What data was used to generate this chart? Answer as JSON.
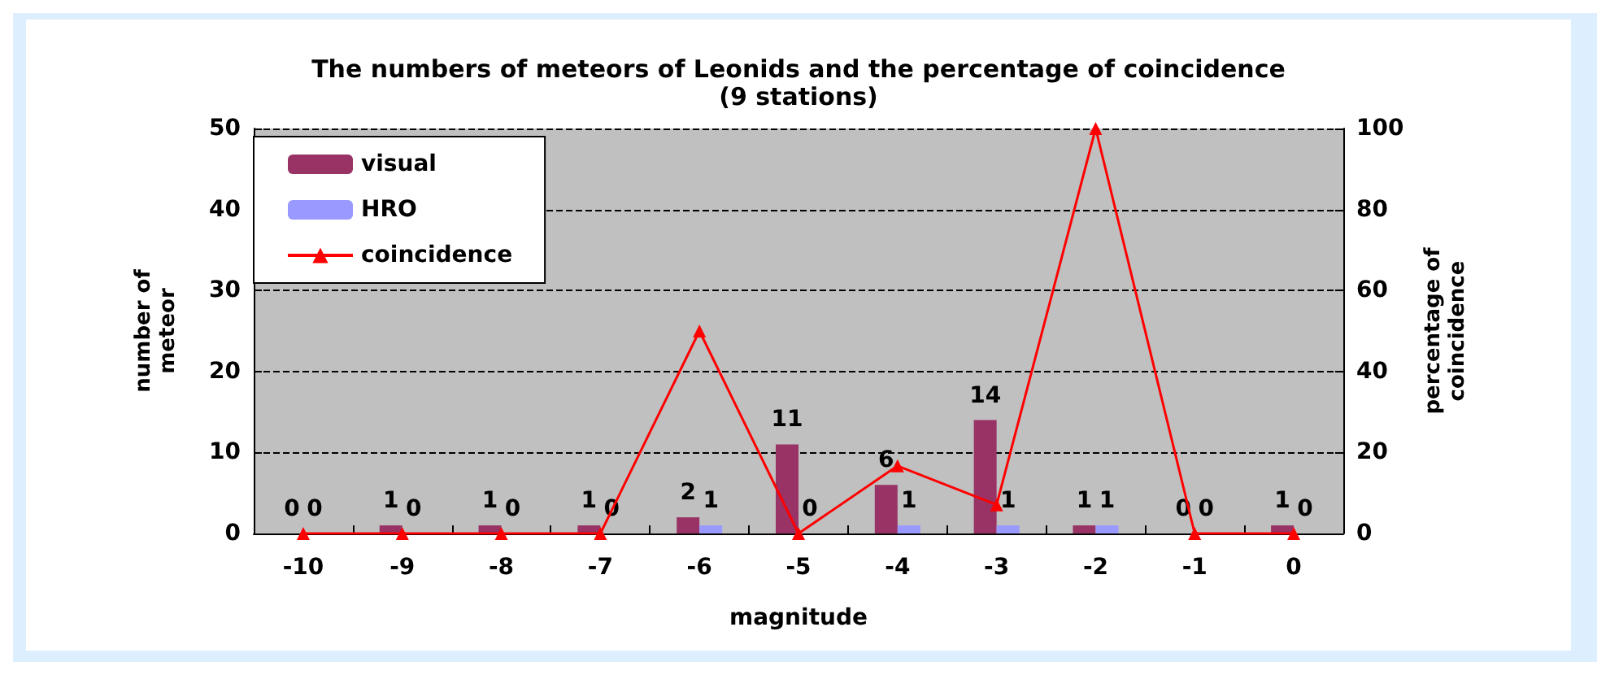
{
  "chart_data": {
    "type": "bar",
    "title": "The numbers of meteors of Leonids and the percentage of coincidence",
    "subtitle": "(9 stations)",
    "xlabel": "magnitude",
    "ylabel": "number of\nmeteor",
    "y2label": "percentage of\ncoincidence",
    "categories": [
      "-10",
      "-9",
      "-8",
      "-7",
      "-6",
      "-5",
      "-4",
      "-3",
      "-2",
      "-1",
      "0"
    ],
    "series": [
      {
        "name": "visual",
        "color": "#993366",
        "values": [
          0,
          1,
          1,
          1,
          2,
          11,
          6,
          14,
          1,
          0,
          1
        ],
        "value_labels": [
          "0",
          "1",
          "1",
          "1",
          "2",
          "11",
          "6",
          "14",
          "1",
          "0",
          "1"
        ]
      },
      {
        "name": "HRO",
        "color": "#9999ff",
        "values": [
          0,
          0,
          0,
          0,
          1,
          0,
          1,
          1,
          1,
          0,
          0
        ],
        "value_labels": [
          "0",
          "0",
          "0",
          "0",
          "1",
          "0",
          "1",
          "1",
          "1",
          "0",
          "0"
        ]
      },
      {
        "name": "coincidence",
        "type": "line",
        "axis": "y2",
        "color": "#ff0000",
        "values": [
          0,
          0,
          0,
          0,
          50,
          0,
          16.7,
          7.1,
          100,
          0,
          0
        ]
      }
    ],
    "ylim": [
      0,
      50
    ],
    "yticks": [
      0,
      10,
      20,
      30,
      40,
      50
    ],
    "y2lim": [
      0,
      100
    ],
    "y2ticks": [
      0,
      20,
      40,
      60,
      80,
      100
    ],
    "grid": "y",
    "legend": "top left",
    "marker": "triangle",
    "line_style": "solid"
  }
}
